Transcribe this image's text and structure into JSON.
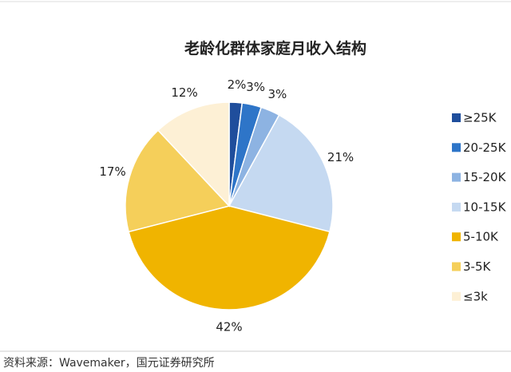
{
  "chart_data": {
    "type": "pie",
    "title": "老龄化群体家庭月收入结构",
    "categories": [
      "≥25K",
      "20-25K",
      "15-20K",
      "10-15K",
      "5-10K",
      "3-5K",
      "≤3k"
    ],
    "values": [
      2,
      3,
      3,
      21,
      42,
      17,
      12
    ],
    "value_labels": [
      "2%",
      "3%",
      "3%",
      "21%",
      "42%",
      "17%",
      "12%"
    ],
    "colors": [
      "#1f4e9c",
      "#2e75c8",
      "#8db3e2",
      "#c5d9f1",
      "#f0b400",
      "#f5cf5a",
      "#fdf0d5"
    ],
    "legend": "right",
    "source": "资料来源：Wavemaker，国元证券研究所"
  }
}
